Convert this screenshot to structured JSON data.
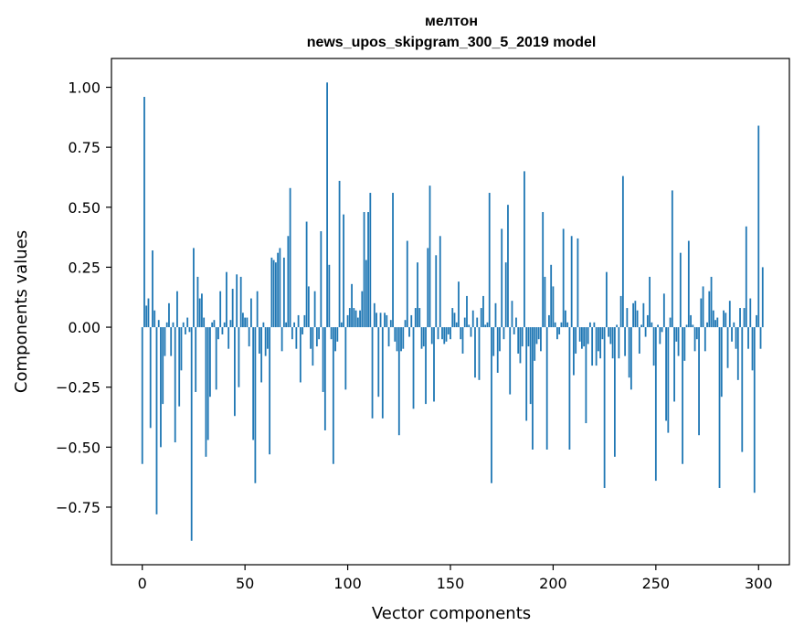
{
  "chart_data": {
    "type": "bar",
    "title_line1": "мелтон",
    "title_line2": "news_upos_skipgram_300_5_2019 model",
    "xlabel": "Vector components",
    "ylabel": "Components values",
    "xlim": [
      -15,
      315
    ],
    "ylim": [
      -0.99,
      1.12
    ],
    "xticks": [
      0,
      50,
      100,
      150,
      200,
      250,
      300
    ],
    "xtick_labels": [
      "0",
      "50",
      "100",
      "150",
      "200",
      "250",
      "300"
    ],
    "yticks": [
      1.0,
      0.75,
      0.5,
      0.25,
      0.0,
      -0.25,
      -0.5,
      -0.75
    ],
    "ytick_labels": [
      "1.00",
      "0.75",
      "0.50",
      "0.25",
      "0.00",
      "−0.25",
      "−0.50",
      "−0.75"
    ],
    "bar_color": "#1f77b4",
    "values": [
      -0.57,
      0.96,
      0.09,
      0.12,
      -0.42,
      0.32,
      0.07,
      -0.78,
      0.03,
      -0.5,
      -0.32,
      -0.12,
      0.02,
      0.1,
      -0.12,
      0.02,
      -0.48,
      0.15,
      -0.33,
      -0.18,
      0.02,
      -0.03,
      0.04,
      -0.02,
      -0.89,
      0.33,
      -0.27,
      0.21,
      0.12,
      0.14,
      0.04,
      -0.54,
      -0.47,
      -0.29,
      0.02,
      0.03,
      -0.26,
      -0.05,
      0.15,
      -0.03,
      0.02,
      0.23,
      -0.09,
      0.03,
      0.16,
      -0.37,
      0.22,
      -0.25,
      0.21,
      0.06,
      0.04,
      0.04,
      -0.08,
      0.12,
      -0.47,
      -0.65,
      0.15,
      -0.11,
      -0.23,
      0.02,
      -0.12,
      -0.09,
      -0.53,
      0.29,
      0.28,
      0.27,
      0.31,
      0.33,
      -0.1,
      0.29,
      0.02,
      0.38,
      0.58,
      -0.05,
      0.02,
      -0.09,
      0.05,
      -0.23,
      -0.03,
      0.05,
      0.44,
      0.17,
      -0.09,
      -0.16,
      0.15,
      -0.08,
      -0.05,
      0.4,
      -0.27,
      -0.43,
      1.02,
      0.26,
      -0.05,
      -0.57,
      -0.1,
      -0.06,
      0.61,
      0.02,
      0.47,
      -0.26,
      0.05,
      0.08,
      0.18,
      0.08,
      0.07,
      0.04,
      0.07,
      0.15,
      0.48,
      0.28,
      0.48,
      0.56,
      -0.38,
      0.1,
      0.06,
      -0.29,
      0.06,
      -0.38,
      0.06,
      0.05,
      -0.08,
      0.03,
      0.56,
      -0.06,
      -0.1,
      -0.45,
      -0.1,
      -0.09,
      0.03,
      0.36,
      -0.04,
      0.05,
      -0.34,
      0.08,
      0.27,
      0.08,
      -0.09,
      -0.08,
      -0.32,
      0.33,
      0.59,
      -0.07,
      -0.31,
      0.3,
      -0.05,
      0.38,
      -0.05,
      -0.07,
      -0.06,
      -0.03,
      -0.05,
      0.08,
      0.06,
      0.02,
      0.19,
      -0.05,
      -0.11,
      0.04,
      0.13,
      0.01,
      -0.04,
      0.07,
      -0.21,
      0.04,
      -0.22,
      0.08,
      0.13,
      0.01,
      0.02,
      0.56,
      -0.65,
      -0.12,
      0.1,
      -0.19,
      -0.1,
      0.41,
      -0.05,
      0.27,
      0.51,
      -0.28,
      0.11,
      -0.03,
      0.04,
      -0.11,
      -0.15,
      -0.08,
      0.65,
      -0.39,
      -0.08,
      -0.32,
      -0.51,
      -0.14,
      -0.07,
      -0.05,
      -0.1,
      0.48,
      0.21,
      -0.51,
      0.05,
      0.26,
      0.17,
      0.02,
      -0.05,
      -0.03,
      0.02,
      0.41,
      0.07,
      0.02,
      -0.51,
      0.38,
      -0.2,
      -0.11,
      0.37,
      -0.06,
      -0.09,
      -0.08,
      -0.4,
      -0.07,
      0.02,
      -0.16,
      0.02,
      -0.16,
      -0.1,
      -0.13,
      -0.05,
      -0.67,
      0.23,
      -0.04,
      -0.07,
      -0.13,
      -0.54,
      0.01,
      -0.13,
      0.13,
      0.63,
      -0.12,
      0.08,
      -0.21,
      -0.26,
      0.1,
      0.11,
      0.07,
      -0.11,
      0.01,
      0.1,
      -0.04,
      0.05,
      0.21,
      0.02,
      -0.16,
      -0.64,
      0.01,
      -0.07,
      -0.02,
      0.14,
      -0.39,
      -0.44,
      0.04,
      0.57,
      -0.31,
      -0.06,
      -0.12,
      0.31,
      -0.57,
      -0.14,
      0.01,
      0.36,
      0.05,
      0.01,
      -0.1,
      -0.05,
      -0.45,
      0.12,
      0.17,
      -0.1,
      0.02,
      0.15,
      0.21,
      0.07,
      0.03,
      0.04,
      -0.67,
      -0.29,
      0.07,
      0.06,
      -0.17,
      0.11,
      -0.06,
      0.02,
      -0.09,
      -0.22,
      0.08,
      -0.52,
      0.08,
      0.42,
      -0.09,
      0.12,
      -0.18,
      -0.69,
      0.05,
      0.84,
      -0.09,
      0.25
    ]
  }
}
